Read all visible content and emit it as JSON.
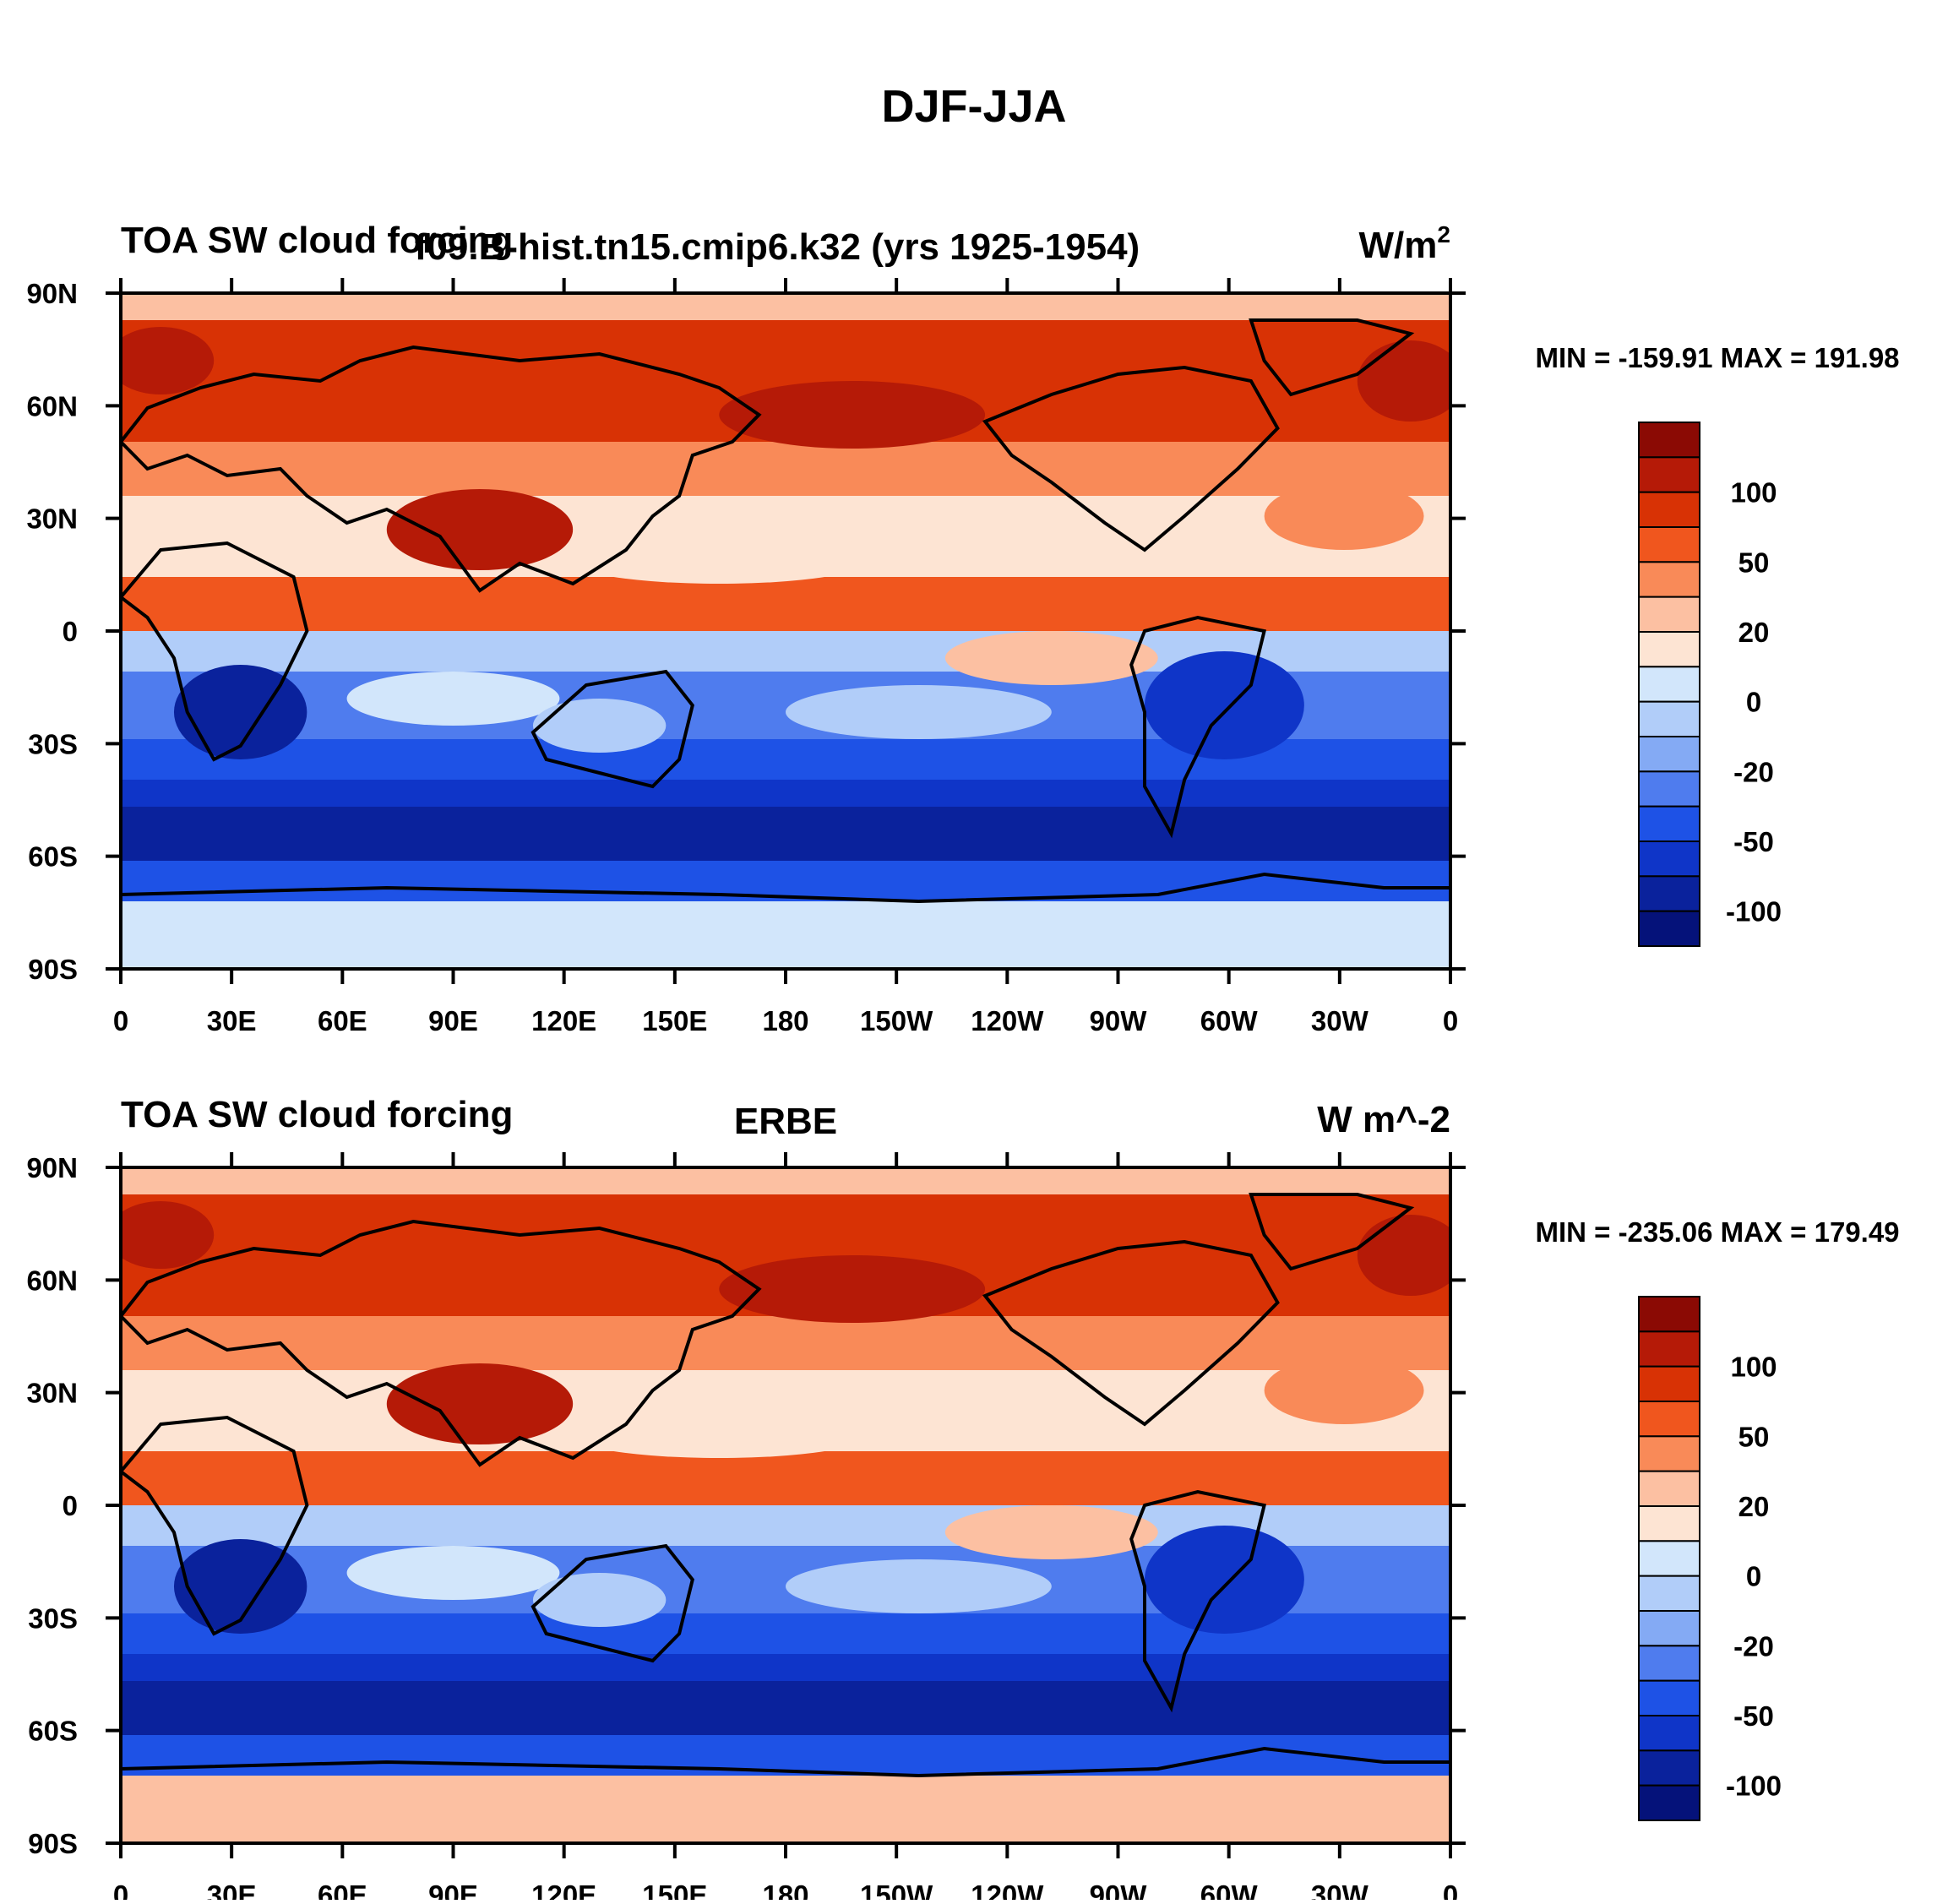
{
  "figure_title": "DJF-JJA",
  "panels": [
    {
      "id": "model",
      "left_title": "TOA SW cloud forcing",
      "center_title": "f09.B-hist.tn15.cmip6.k32 (yrs 1925-1954)",
      "units": "W/m",
      "units_sup": "2",
      "min_max": "MIN = -159.91   MAX = 191.98"
    },
    {
      "id": "obs",
      "left_title": "TOA SW cloud forcing",
      "center_title": "ERBE",
      "units": "W m^-2",
      "units_sup": "",
      "min_max": "MIN = -235.06   MAX = 179.49"
    }
  ],
  "lat_labels": [
    "90N",
    "60N",
    "30N",
    "0",
    "30S",
    "60S",
    "90S"
  ],
  "lon_labels": [
    "0",
    "30E",
    "60E",
    "90E",
    "120E",
    "150E",
    "180",
    "150W",
    "120W",
    "90W",
    "60W",
    "30W",
    "0"
  ],
  "colorbar_labels": [
    "100",
    "50",
    "20",
    "0",
    "-20",
    "-50",
    "-100"
  ],
  "colorbar_colors": [
    "#8b0a04",
    "#b51a07",
    "#d83205",
    "#f0561e",
    "#f98a58",
    "#fcc0a2",
    "#fde4d3",
    "#d2e6fb",
    "#b1cdf9",
    "#84aaf4",
    "#4f7cee",
    "#1e52e6",
    "#0f35c8",
    "#0a229c",
    "#05127a"
  ],
  "map_colors": {
    "strong_red": "#b51a07",
    "red": "#d83205",
    "orange": "#f0561e",
    "light_orange": "#f98a58",
    "peach": "#fcc0a2",
    "pale": "#fde4d3",
    "pale_blue": "#d2e6fb",
    "light_blue": "#b1cdf9",
    "blue": "#4f7cee",
    "mid_blue": "#1e52e6",
    "deep_blue": "#0f35c8",
    "navy": "#0a229c",
    "coast": "#000000"
  }
}
